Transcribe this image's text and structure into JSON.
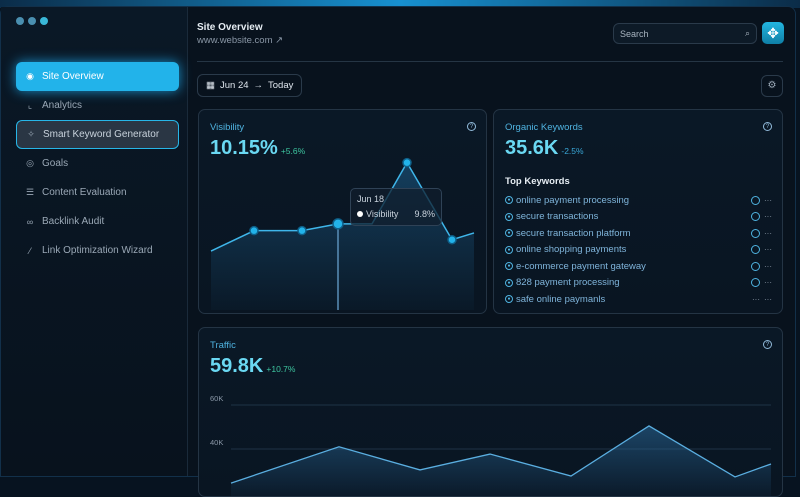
{
  "sidebar": {
    "items": [
      {
        "label": "Site Overview",
        "icon": "eye-icon",
        "glyph": "◉",
        "state": "active"
      },
      {
        "label": "Analytics",
        "icon": "chart-icon",
        "glyph": "⌞",
        "state": ""
      },
      {
        "label": "Smart Keyword Generator",
        "icon": "sparkle-icon",
        "glyph": "✧",
        "state": "outlined"
      },
      {
        "label": "Goals",
        "icon": "target-icon",
        "glyph": "◎",
        "state": ""
      },
      {
        "label": "Content Evaluation",
        "icon": "list-icon",
        "glyph": "☰",
        "state": ""
      },
      {
        "label": "Backlink Audit",
        "icon": "link-icon",
        "glyph": "∞",
        "state": ""
      },
      {
        "label": "Link Optimization Wizard",
        "icon": "wand-icon",
        "glyph": "⁄",
        "state": ""
      }
    ]
  },
  "header": {
    "title": "Site Overview",
    "url": "www.website.com",
    "url_icon": "↗",
    "search_placeholder": "Search"
  },
  "date_range": {
    "from": "Jun 24",
    "arrow": "→",
    "to": "Today"
  },
  "visibility": {
    "label": "Visibility",
    "value": "10.15%",
    "delta": "+5.6%",
    "tooltip": {
      "date": "Jun 18",
      "series": "Visibility",
      "value": "9.8%"
    }
  },
  "organic": {
    "label": "Organic Keywords",
    "value": "35.6K",
    "delta": "-2.5%",
    "top_title": "Top Keywords",
    "keywords": [
      "online payment processing",
      "secure transactions",
      "secure transaction platform",
      "online shopping payments",
      "e-commerce payment gateway",
      "828 payment processing",
      "safe online paymanls"
    ]
  },
  "traffic": {
    "label": "Traffic",
    "value": "59.8K",
    "delta": "+10.7%"
  },
  "chart_data": [
    {
      "type": "area",
      "series": [
        {
          "name": "Visibility",
          "values": [
            8.6,
            9.5,
            9.5,
            9.8,
            9.8,
            12.5,
            9.1,
            9.4
          ]
        }
      ],
      "highlight_index": 3,
      "ylim": [
        6,
        13.5
      ]
    },
    {
      "type": "area",
      "yticks": [
        "60K",
        "40K"
      ],
      "values": [
        24.5,
        41,
        30.5,
        37.7,
        27.7,
        50.5,
        27.3,
        33.2
      ],
      "ylim": [
        0,
        60
      ],
      "unit": "K",
      "grid": true
    }
  ],
  "colors": {
    "accent": "#22b3ea",
    "positive": "#3ec6a0",
    "line": "#3fb6ea"
  }
}
